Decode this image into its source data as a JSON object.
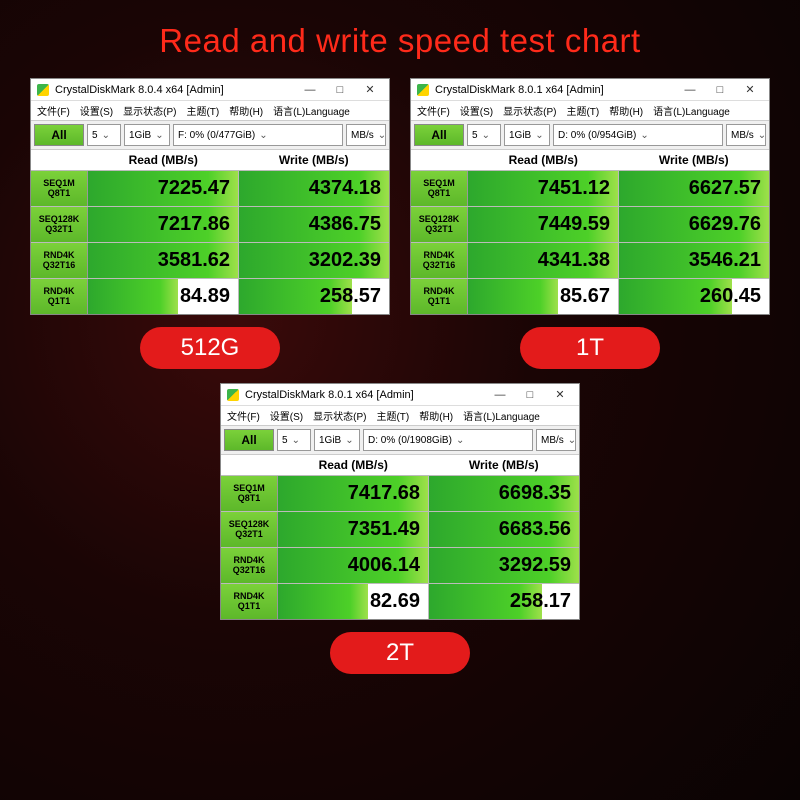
{
  "page_title": "Read and write speed test chart",
  "colors": {
    "background": "#1a0505",
    "title": "#ff2a1a",
    "badge_bg": "#e31b1b",
    "badge_text": "#ffffff",
    "bar_gradient": [
      "#2da82d",
      "#4dd028",
      "#9ee04a"
    ],
    "button_gradient": [
      "#7bd13a",
      "#5db82a"
    ],
    "window_bg": "#ffffff"
  },
  "menu_items": [
    "文件(F)",
    "设置(S)",
    "显示状态(P)",
    "主题(T)",
    "帮助(H)",
    "语言(L)Language"
  ],
  "toolbar": {
    "all_label": "All",
    "iterations": "5",
    "test_size": "1GiB",
    "unit": "MB/s"
  },
  "column_headers": {
    "read": "Read (MB/s)",
    "write": "Write (MB/s)"
  },
  "row_labels": [
    {
      "l1": "SEQ1M",
      "l2": "Q8T1"
    },
    {
      "l1": "SEQ128K",
      "l2": "Q32T1"
    },
    {
      "l1": "RND4K",
      "l2": "Q32T16"
    },
    {
      "l1": "RND4K",
      "l2": "Q1T1"
    }
  ],
  "panels": [
    {
      "title": "CrystalDiskMark 8.0.4 x64 [Admin]",
      "drive": "F: 0% (0/477GiB)",
      "badge": "512G",
      "rows": [
        {
          "read": "7225.47",
          "read_pct": 100,
          "write": "4374.18",
          "write_pct": 100
        },
        {
          "read": "7217.86",
          "read_pct": 100,
          "write": "4386.75",
          "write_pct": 100
        },
        {
          "read": "3581.62",
          "read_pct": 100,
          "write": "3202.39",
          "write_pct": 100
        },
        {
          "read": "84.89",
          "read_pct": 60,
          "write": "258.57",
          "write_pct": 75
        }
      ]
    },
    {
      "title": "CrystalDiskMark 8.0.1 x64 [Admin]",
      "drive": "D: 0% (0/954GiB)",
      "badge": "1T",
      "rows": [
        {
          "read": "7451.12",
          "read_pct": 100,
          "write": "6627.57",
          "write_pct": 100
        },
        {
          "read": "7449.59",
          "read_pct": 100,
          "write": "6629.76",
          "write_pct": 100
        },
        {
          "read": "4341.38",
          "read_pct": 100,
          "write": "3546.21",
          "write_pct": 100
        },
        {
          "read": "85.67",
          "read_pct": 60,
          "write": "260.45",
          "write_pct": 75
        }
      ]
    },
    {
      "title": "CrystalDiskMark 8.0.1 x64 [Admin]",
      "drive": "D: 0% (0/1908GiB)",
      "badge": "2T",
      "rows": [
        {
          "read": "7417.68",
          "read_pct": 100,
          "write": "6698.35",
          "write_pct": 100
        },
        {
          "read": "7351.49",
          "read_pct": 100,
          "write": "6683.56",
          "write_pct": 100
        },
        {
          "read": "4006.14",
          "read_pct": 100,
          "write": "3292.59",
          "write_pct": 100
        },
        {
          "read": "82.69",
          "read_pct": 60,
          "write": "258.17",
          "write_pct": 75
        }
      ]
    }
  ]
}
